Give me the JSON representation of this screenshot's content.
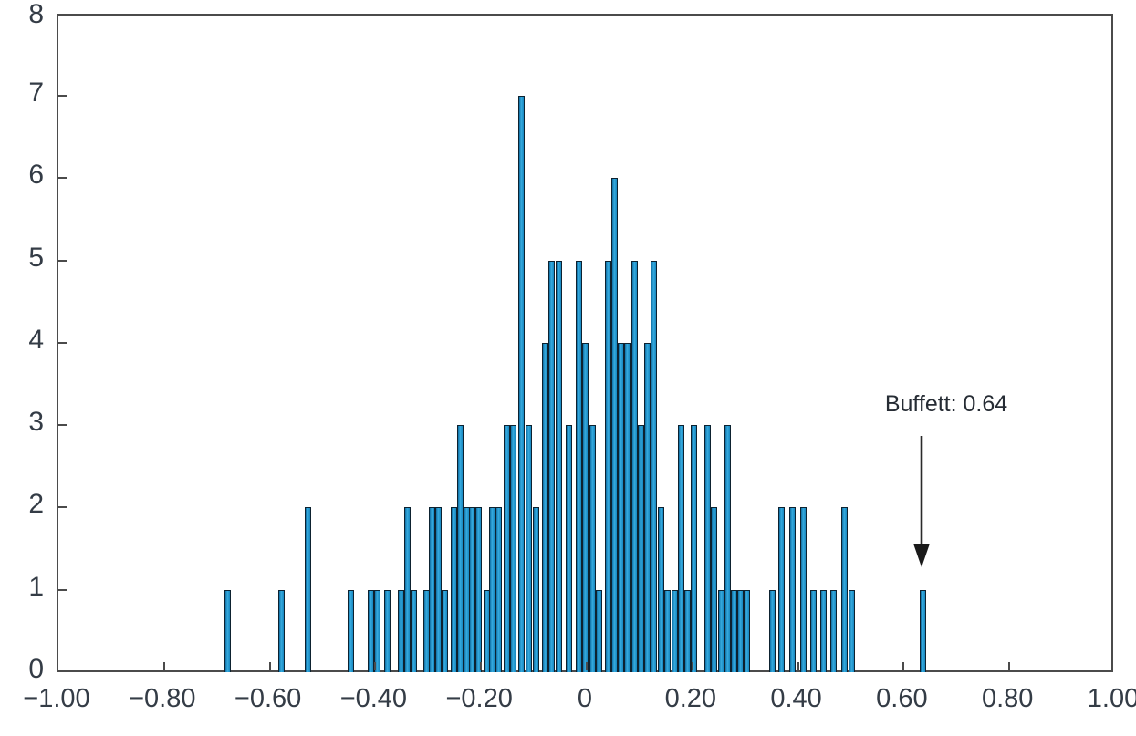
{
  "chart_data": {
    "type": "bar",
    "subtype": "histogram",
    "title": "",
    "xlabel": "",
    "ylabel": "",
    "xlim": [
      -1.0,
      1.0
    ],
    "ylim": [
      0,
      8
    ],
    "grid": false,
    "bar_color": "#1e8cc6",
    "bar_outline": "#0d2230",
    "axis_color": "#4b4b4b",
    "label_color": "#343c46",
    "x_ticks": [
      {
        "v": -1.0,
        "label": "−1.00"
      },
      {
        "v": -0.8,
        "label": "−0.80"
      },
      {
        "v": -0.6,
        "label": "−0.60"
      },
      {
        "v": -0.4,
        "label": "−0.40"
      },
      {
        "v": -0.2,
        "label": "−0.20"
      },
      {
        "v": 0.0,
        "label": "0"
      },
      {
        "v": 0.2,
        "label": "0.20"
      },
      {
        "v": 0.4,
        "label": "0.40"
      },
      {
        "v": 0.6,
        "label": "0.60"
      },
      {
        "v": 0.8,
        "label": "0.80"
      },
      {
        "v": 1.0,
        "label": "1.00"
      }
    ],
    "y_ticks": [
      {
        "v": 0,
        "label": "0"
      },
      {
        "v": 1,
        "label": "1"
      },
      {
        "v": 2,
        "label": "2"
      },
      {
        "v": 3,
        "label": "3"
      },
      {
        "v": 4,
        "label": "4"
      },
      {
        "v": 5,
        "label": "5"
      },
      {
        "v": 6,
        "label": "6"
      },
      {
        "v": 7,
        "label": "7"
      },
      {
        "v": 8,
        "label": "8"
      }
    ],
    "bars": [
      {
        "x": -0.679,
        "h": 1
      },
      {
        "x": -0.577,
        "h": 1
      },
      {
        "x": -0.527,
        "h": 2
      },
      {
        "x": -0.447,
        "h": 1
      },
      {
        "x": -0.408,
        "h": 1
      },
      {
        "x": -0.396,
        "h": 1
      },
      {
        "x": -0.377,
        "h": 1
      },
      {
        "x": -0.351,
        "h": 1
      },
      {
        "x": -0.339,
        "h": 2
      },
      {
        "x": -0.327,
        "h": 1
      },
      {
        "x": -0.304,
        "h": 1
      },
      {
        "x": -0.292,
        "h": 2
      },
      {
        "x": -0.28,
        "h": 2
      },
      {
        "x": -0.268,
        "h": 1
      },
      {
        "x": -0.252,
        "h": 2
      },
      {
        "x": -0.24,
        "h": 3
      },
      {
        "x": -0.228,
        "h": 2
      },
      {
        "x": -0.216,
        "h": 2
      },
      {
        "x": -0.204,
        "h": 2
      },
      {
        "x": -0.19,
        "h": 1
      },
      {
        "x": -0.178,
        "h": 2
      },
      {
        "x": -0.166,
        "h": 2
      },
      {
        "x": -0.152,
        "h": 3
      },
      {
        "x": -0.139,
        "h": 3
      },
      {
        "x": -0.124,
        "h": 7
      },
      {
        "x": -0.109,
        "h": 3
      },
      {
        "x": -0.096,
        "h": 2
      },
      {
        "x": -0.078,
        "h": 4
      },
      {
        "x": -0.066,
        "h": 5
      },
      {
        "x": -0.053,
        "h": 5
      },
      {
        "x": -0.034,
        "h": 3
      },
      {
        "x": -0.015,
        "h": 5
      },
      {
        "x": -0.002,
        "h": 4
      },
      {
        "x": 0.011,
        "h": 3
      },
      {
        "x": 0.024,
        "h": 1
      },
      {
        "x": 0.04,
        "h": 5
      },
      {
        "x": 0.052,
        "h": 6
      },
      {
        "x": 0.065,
        "h": 4
      },
      {
        "x": 0.077,
        "h": 4
      },
      {
        "x": 0.09,
        "h": 5
      },
      {
        "x": 0.102,
        "h": 3
      },
      {
        "x": 0.115,
        "h": 4
      },
      {
        "x": 0.127,
        "h": 5
      },
      {
        "x": 0.14,
        "h": 2
      },
      {
        "x": 0.153,
        "h": 1
      },
      {
        "x": 0.166,
        "h": 1
      },
      {
        "x": 0.178,
        "h": 3
      },
      {
        "x": 0.19,
        "h": 1
      },
      {
        "x": 0.203,
        "h": 3
      },
      {
        "x": 0.229,
        "h": 3
      },
      {
        "x": 0.241,
        "h": 2
      },
      {
        "x": 0.254,
        "h": 1
      },
      {
        "x": 0.266,
        "h": 3
      },
      {
        "x": 0.278,
        "h": 1
      },
      {
        "x": 0.291,
        "h": 1
      },
      {
        "x": 0.303,
        "h": 1
      },
      {
        "x": 0.352,
        "h": 1
      },
      {
        "x": 0.369,
        "h": 2
      },
      {
        "x": 0.39,
        "h": 2
      },
      {
        "x": 0.41,
        "h": 2
      },
      {
        "x": 0.429,
        "h": 1
      },
      {
        "x": 0.448,
        "h": 1
      },
      {
        "x": 0.467,
        "h": 1
      },
      {
        "x": 0.488,
        "h": 2
      },
      {
        "x": 0.502,
        "h": 1
      },
      {
        "x": 0.637,
        "h": 1
      }
    ],
    "annotation": {
      "text": "Buffett: 0.64",
      "text_center_x": 0.675,
      "arrow_x": 0.637,
      "arrow_color": "#2a2a2a"
    },
    "legend": null
  }
}
